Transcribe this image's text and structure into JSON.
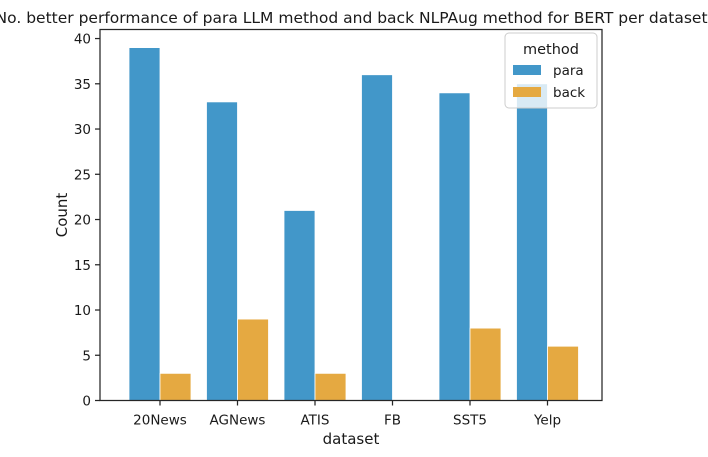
{
  "chart_data": {
    "type": "bar",
    "title": "No. better performance of para LLM method and back NLPAug method for BERT per dataset.",
    "xlabel": "dataset",
    "ylabel": "Count",
    "categories": [
      "20News",
      "AGNews",
      "ATIS",
      "FB",
      "SST5",
      "Yelp"
    ],
    "series": [
      {
        "name": "para",
        "color": "#4297c9",
        "values": [
          39,
          33,
          21,
          36,
          34,
          35
        ]
      },
      {
        "name": "back",
        "color": "#e5a941",
        "values": [
          3,
          9,
          3,
          0,
          8,
          6
        ]
      }
    ],
    "ylim": [
      0,
      41
    ],
    "yticks": [
      0,
      5,
      10,
      15,
      20,
      25,
      30,
      35,
      40
    ],
    "grid": false,
    "legend": {
      "title": "method",
      "placement": "top-right"
    }
  }
}
